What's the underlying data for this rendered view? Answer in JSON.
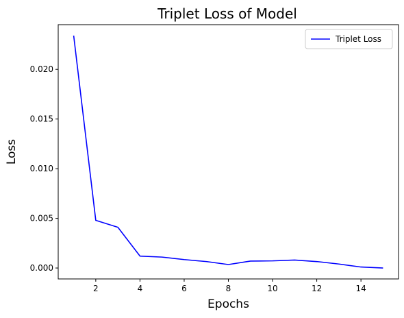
{
  "chart_data": {
    "type": "line",
    "title": "Triplet Loss of Model",
    "xlabel": "Epochs",
    "ylabel": "Loss",
    "xlim": [
      0.3,
      15.7
    ],
    "ylim": [
      -0.0011,
      0.0245
    ],
    "xticks": [
      2,
      4,
      6,
      8,
      10,
      12,
      14
    ],
    "xtick_labels": [
      "2",
      "4",
      "6",
      "8",
      "10",
      "12",
      "14"
    ],
    "yticks": [
      0.0,
      0.005,
      0.01,
      0.015,
      0.02
    ],
    "ytick_labels": [
      "0.000",
      "0.005",
      "0.010",
      "0.015",
      "0.020"
    ],
    "grid": false,
    "legend_position": "top-right",
    "series": [
      {
        "name": "Triplet Loss",
        "color": "#0000ff",
        "x": [
          1,
          2,
          3,
          4,
          5,
          6,
          7,
          8,
          9,
          10,
          11,
          12,
          13,
          14,
          15
        ],
        "y": [
          0.0234,
          0.0048,
          0.0041,
          0.0012,
          0.0011,
          0.00085,
          0.00065,
          0.00035,
          0.0007,
          0.00072,
          0.0008,
          0.00065,
          0.0004,
          0.0001,
          0.0
        ]
      }
    ]
  }
}
